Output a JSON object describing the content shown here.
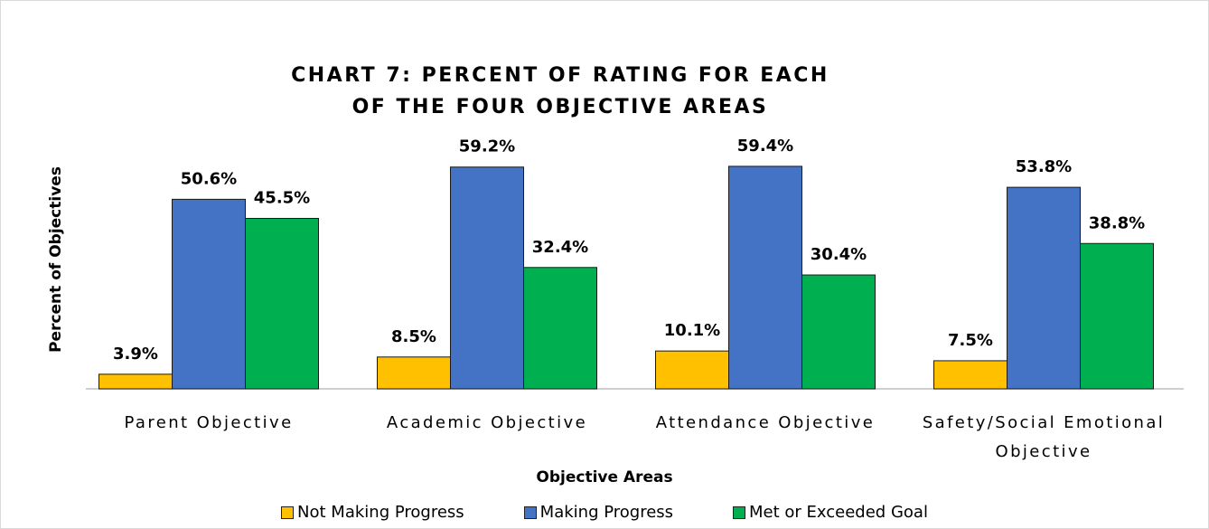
{
  "chart_data": {
    "type": "bar",
    "title": "CHART 7: PERCENT OF RATING FOR EACH OF THE FOUR OBJECTIVE AREAS",
    "xlabel": "Objective Areas",
    "ylabel": "Percent of Objectives",
    "categories": [
      "Parent Objective",
      "Academic Objective",
      "Attendance Objective",
      "Safety/Social Emotional Objective"
    ],
    "ylim": [
      0,
      70
    ],
    "legend": "bottom",
    "series": [
      {
        "name": "Not Making Progress",
        "color": "#ffc000",
        "values": [
          3.9,
          8.5,
          10.1,
          7.5
        ],
        "value_labels": [
          "3.9%",
          "8.5%",
          "10.1%",
          "7.5%"
        ]
      },
      {
        "name": "Making Progress",
        "color": "#4472c4",
        "values": [
          50.6,
          59.2,
          59.4,
          53.8
        ],
        "value_labels": [
          "50.6%",
          "59.2%",
          "59.4%",
          "53.8%"
        ]
      },
      {
        "name": "Met or Exceeded Goal",
        "color": "#00b050",
        "values": [
          45.5,
          32.4,
          30.4,
          38.8
        ],
        "value_labels": [
          "45.5%",
          "32.4%",
          "30.4%",
          "38.8%"
        ]
      }
    ]
  }
}
